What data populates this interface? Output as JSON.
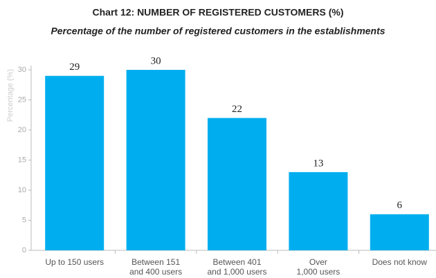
{
  "chart_data": {
    "type": "bar",
    "title": "Chart 12: NUMBER OF REGISTERED CUSTOMERS (%)",
    "subtitle": "Percentage of the number of registered customers in the establishments",
    "ylabel": "Percentage (%)",
    "categories": [
      "Up to 150 users",
      "Between 151\nand 400 users",
      "Between 401\nand 1,000 users",
      "Over\n1,000 users",
      "Does not know"
    ],
    "values": [
      29,
      30,
      22,
      13,
      6
    ],
    "color": "#00aeef",
    "ylim": [
      0,
      30
    ],
    "yticks": [
      0,
      5,
      10,
      15,
      20,
      25,
      30
    ],
    "grid": false
  }
}
